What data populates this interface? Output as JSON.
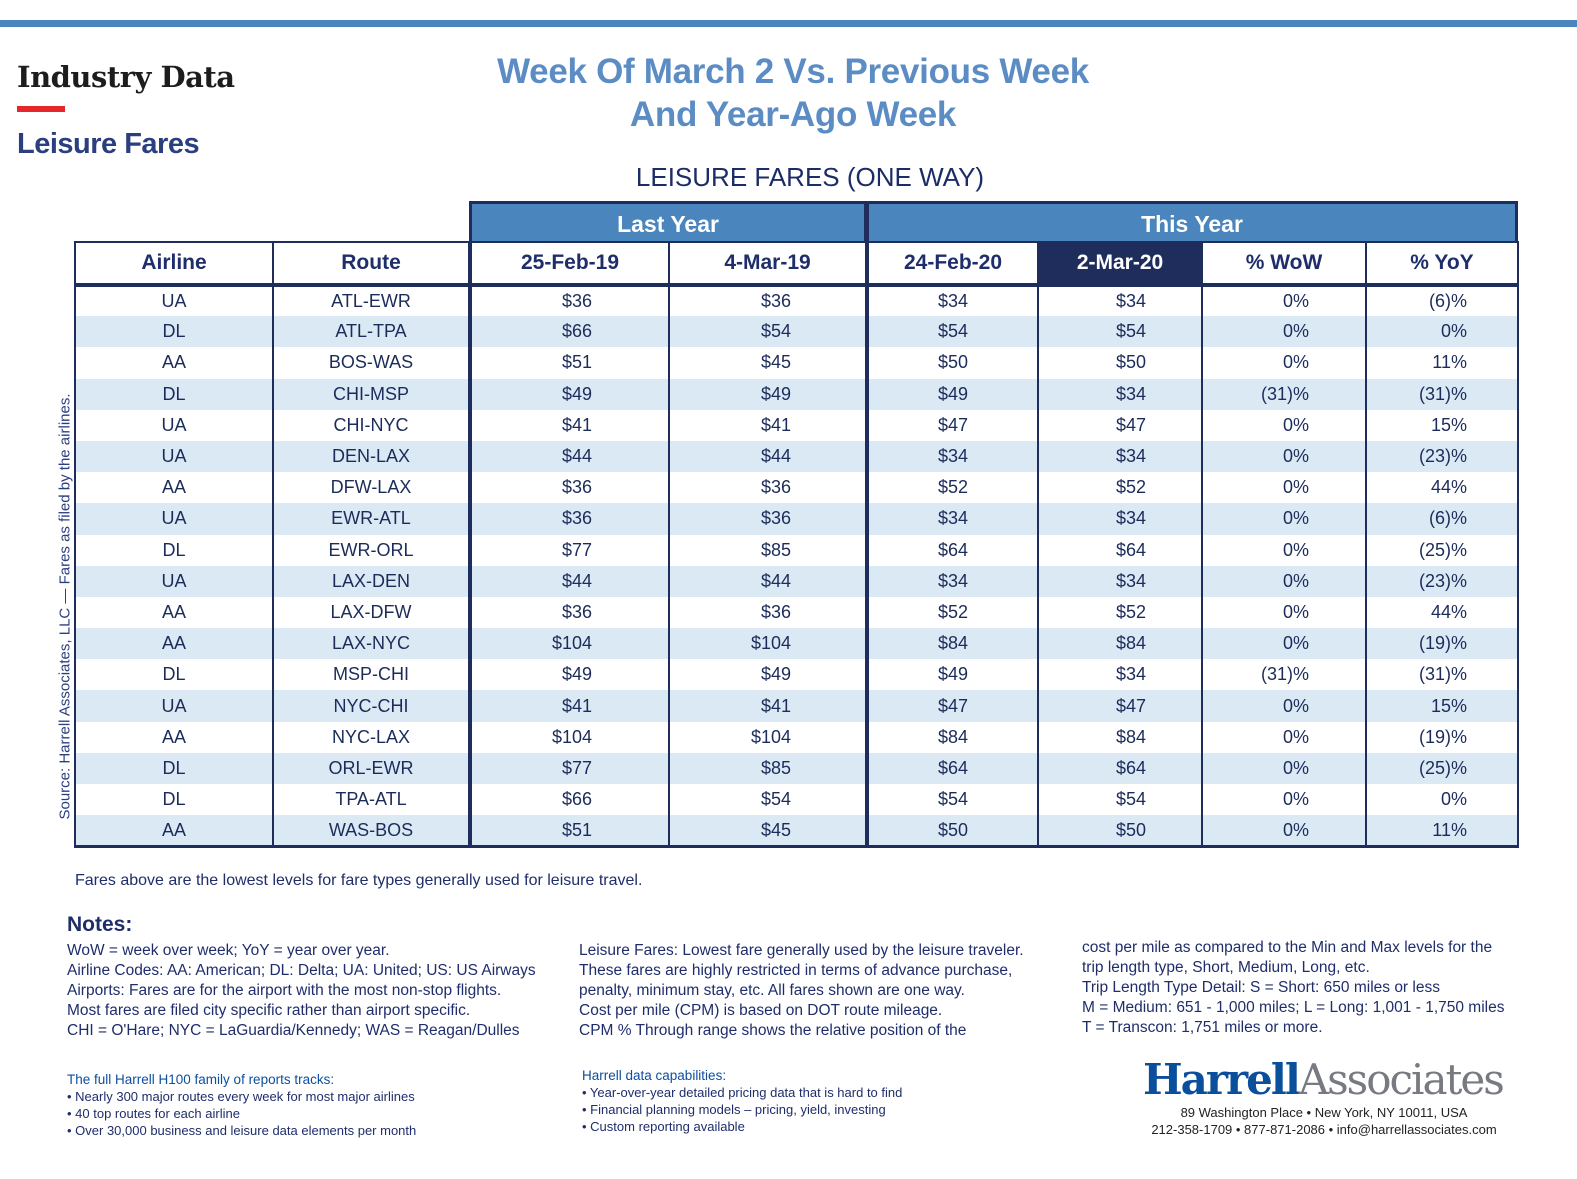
{
  "header": {
    "brand": "Industry Data",
    "section": "Leisure Fares",
    "title_line1": "Week Of March 2 Vs. Previous Week",
    "title_line2": "And Year-Ago Week",
    "subtitle": "LEISURE FARES (ONE WAY)",
    "source": "Source: Harrell Associates, LLC — Fares as filed by the airlines."
  },
  "colors": {
    "accent_blue": "#4a86bd",
    "navy": "#1f2d5c",
    "row_shade": "#dbe9f5",
    "brand_red": "#e5262b"
  },
  "table": {
    "groups": [
      "Last Year",
      "This Year"
    ],
    "columns": [
      "Airline",
      "Route",
      "25-Feb-19",
      "4-Mar-19",
      "24-Feb-20",
      "2-Mar-20",
      "% WoW",
      "% YoY"
    ],
    "highlighted_column": "2-Mar-20",
    "rows": [
      [
        "UA",
        "ATL-EWR",
        "$36",
        "$36",
        "$34",
        "$34",
        "0%",
        "(6)%"
      ],
      [
        "DL",
        "ATL-TPA",
        "$66",
        "$54",
        "$54",
        "$54",
        "0%",
        "0%"
      ],
      [
        "AA",
        "BOS-WAS",
        "$51",
        "$45",
        "$50",
        "$50",
        "0%",
        "11%"
      ],
      [
        "DL",
        "CHI-MSP",
        "$49",
        "$49",
        "$49",
        "$34",
        "(31)%",
        "(31)%"
      ],
      [
        "UA",
        "CHI-NYC",
        "$41",
        "$41",
        "$47",
        "$47",
        "0%",
        "15%"
      ],
      [
        "UA",
        "DEN-LAX",
        "$44",
        "$44",
        "$34",
        "$34",
        "0%",
        "(23)%"
      ],
      [
        "AA",
        "DFW-LAX",
        "$36",
        "$36",
        "$52",
        "$52",
        "0%",
        "44%"
      ],
      [
        "UA",
        "EWR-ATL",
        "$36",
        "$36",
        "$34",
        "$34",
        "0%",
        "(6)%"
      ],
      [
        "DL",
        "EWR-ORL",
        "$77",
        "$85",
        "$64",
        "$64",
        "0%",
        "(25)%"
      ],
      [
        "UA",
        "LAX-DEN",
        "$44",
        "$44",
        "$34",
        "$34",
        "0%",
        "(23)%"
      ],
      [
        "AA",
        "LAX-DFW",
        "$36",
        "$36",
        "$52",
        "$52",
        "0%",
        "44%"
      ],
      [
        "AA",
        "LAX-NYC",
        "$104",
        "$104",
        "$84",
        "$84",
        "0%",
        "(19)%"
      ],
      [
        "DL",
        "MSP-CHI",
        "$49",
        "$49",
        "$49",
        "$34",
        "(31)%",
        "(31)%"
      ],
      [
        "UA",
        "NYC-CHI",
        "$41",
        "$41",
        "$47",
        "$47",
        "0%",
        "15%"
      ],
      [
        "AA",
        "NYC-LAX",
        "$104",
        "$104",
        "$84",
        "$84",
        "0%",
        "(19)%"
      ],
      [
        "DL",
        "ORL-EWR",
        "$77",
        "$85",
        "$64",
        "$64",
        "0%",
        "(25)%"
      ],
      [
        "DL",
        "TPA-ATL",
        "$66",
        "$54",
        "$54",
        "$54",
        "0%",
        "0%"
      ],
      [
        "AA",
        "WAS-BOS",
        "$51",
        "$45",
        "$50",
        "$50",
        "0%",
        "11%"
      ]
    ]
  },
  "footnote": "Fares above are the lowest levels for fare types generally used for leisure travel.",
  "notes": {
    "heading": "Notes:",
    "col1": [
      "WoW = week over week; YoY = year over year.",
      "Airline Codes: AA: American; DL: Delta; UA: United; US: US Airways",
      "Airports: Fares are for the airport with the most non-stop flights.",
      "Most fares are filed city specific rather than airport specific.",
      "CHI = O'Hare; NYC = LaGuardia/Kennedy; WAS = Reagan/Dulles"
    ],
    "col2": [
      "Leisure Fares:  Lowest fare generally used by the leisure traveler.",
      "These fares are highly restricted in terms of advance purchase,",
      "penalty, minimum stay, etc. All fares shown are one way.",
      "Cost per mile (CPM) is based on DOT route mileage.",
      "CPM % Through range shows the relative position of the"
    ],
    "col3": [
      "cost per mile as compared to the Min and Max levels for the",
      "trip length type, Short, Medium, Long, etc.",
      "Trip Length Type Detail: S = Short: 650 miles or less",
      "M = Medium: 651 - 1,000 miles; L = Long: 1,001 - 1,750 miles",
      "T = Transcon: 1,751 miles or more."
    ]
  },
  "promo": {
    "tracks_heading": "The full Harrell H100 family of reports tracks:",
    "tracks": [
      "• Nearly 300 major routes every week for most major airlines",
      "• 40 top routes for each airline",
      "• Over 30,000 business and leisure data elements per month"
    ],
    "caps_heading": "Harrell data capabilities:",
    "caps": [
      "• Year-over-year detailed pricing data that is hard to find",
      "• Financial planning models – pricing, yield, investing",
      "• Custom reporting available"
    ]
  },
  "company": {
    "logo_part1": "Harrell",
    "logo_part2": "Associates",
    "address": "89 Washington Place • New York, NY 10011, USA",
    "contact": "212-358-1709 • 877-871-2086 • info@harrellassociates.com"
  }
}
